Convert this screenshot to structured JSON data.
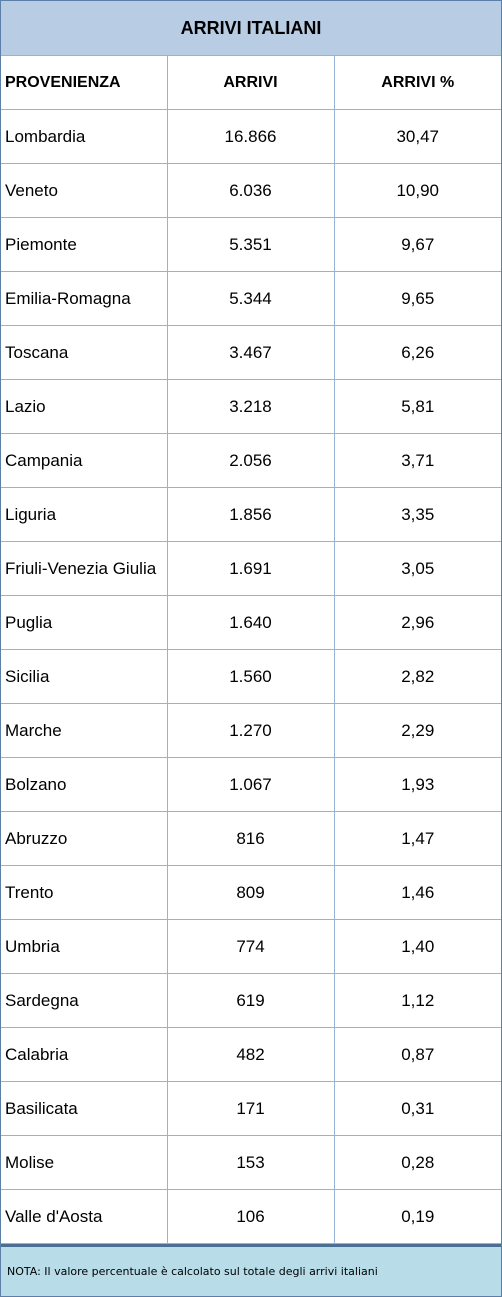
{
  "title": "ARRIVI ITALIANI",
  "headers": {
    "provenienza": "PROVENIENZA",
    "arrivi": "ARRIVI",
    "arrivi_pct": "ARRIVI %"
  },
  "rows": [
    {
      "region": "Lombardia",
      "arrivi": "16.866",
      "pct": "30,47"
    },
    {
      "region": "Veneto",
      "arrivi": "6.036",
      "pct": "10,90"
    },
    {
      "region": "Piemonte",
      "arrivi": "5.351",
      "pct": "9,67"
    },
    {
      "region": "Emilia-Romagna",
      "arrivi": "5.344",
      "pct": "9,65"
    },
    {
      "region": "Toscana",
      "arrivi": "3.467",
      "pct": "6,26"
    },
    {
      "region": "Lazio",
      "arrivi": "3.218",
      "pct": "5,81"
    },
    {
      "region": "Campania",
      "arrivi": "2.056",
      "pct": "3,71"
    },
    {
      "region": "Liguria",
      "arrivi": "1.856",
      "pct": "3,35"
    },
    {
      "region": "Friuli-Venezia Giulia",
      "arrivi": "1.691",
      "pct": "3,05"
    },
    {
      "region": "Puglia",
      "arrivi": "1.640",
      "pct": "2,96"
    },
    {
      "region": "Sicilia",
      "arrivi": "1.560",
      "pct": "2,82"
    },
    {
      "region": "Marche",
      "arrivi": "1.270",
      "pct": "2,29"
    },
    {
      "region": "Bolzano",
      "arrivi": "1.067",
      "pct": "1,93"
    },
    {
      "region": "Abruzzo",
      "arrivi": "816",
      "pct": "1,47"
    },
    {
      "region": "Trento",
      "arrivi": "809",
      "pct": "1,46"
    },
    {
      "region": "Umbria",
      "arrivi": "774",
      "pct": "1,40"
    },
    {
      "region": "Sardegna",
      "arrivi": "619",
      "pct": "1,12"
    },
    {
      "region": "Calabria",
      "arrivi": "482",
      "pct": "0,87"
    },
    {
      "region": "Basilicata",
      "arrivi": "171",
      "pct": "0,31"
    },
    {
      "region": "Molise",
      "arrivi": "153",
      "pct": "0,28"
    },
    {
      "region": "Valle d'Aosta",
      "arrivi": "106",
      "pct": "0,19"
    }
  ],
  "note": "NOTA: Il valore percentuale è calcolato sul totale degli arrivi italiani",
  "colors": {
    "title_bg": "#b8cce4",
    "note_bg": "#b8dde9",
    "grid_line": "#95b3d7"
  }
}
